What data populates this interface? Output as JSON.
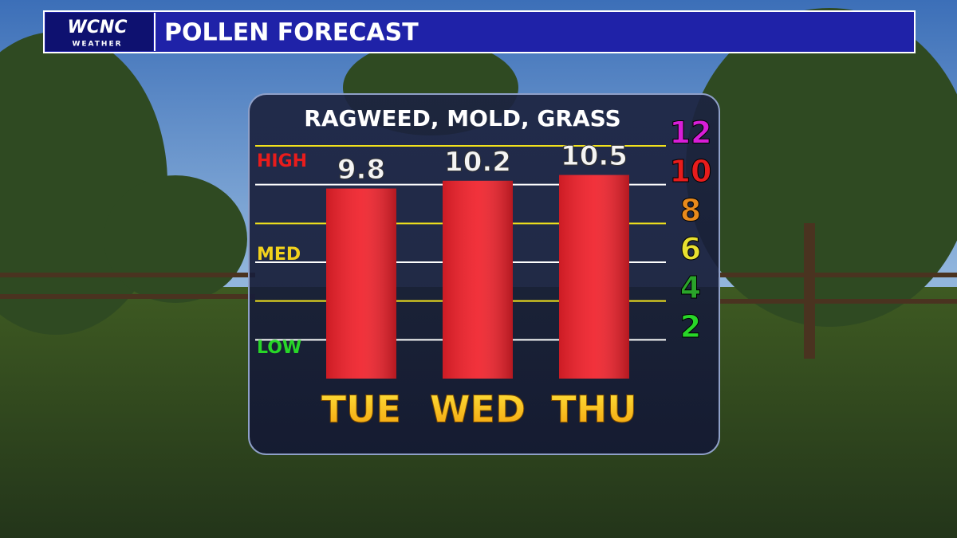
{
  "header": {
    "logo": "WCNC",
    "logo_sub": "WEATHER",
    "title": "POLLEN FORECAST"
  },
  "chart_data": {
    "type": "bar",
    "title": "RAGWEED, MOLD, GRASS",
    "categories": [
      "TUE",
      "WED",
      "THU"
    ],
    "values": [
      9.8,
      10.2,
      10.5
    ],
    "color": "#f0202a",
    "ylim": [
      0,
      12
    ],
    "yticks": [
      2,
      4,
      6,
      8,
      10,
      12
    ],
    "ytick_colors": [
      "#28d628",
      "#2aa52a",
      "#e8e030",
      "#e88a1c",
      "#e81c1c",
      "#d81ed8"
    ],
    "levels": [
      {
        "label": "HIGH",
        "color": "#e81c1c"
      },
      {
        "label": "MED",
        "color": "#f2d21c"
      },
      {
        "label": "LOW",
        "color": "#28d628"
      }
    ],
    "grid": true
  }
}
